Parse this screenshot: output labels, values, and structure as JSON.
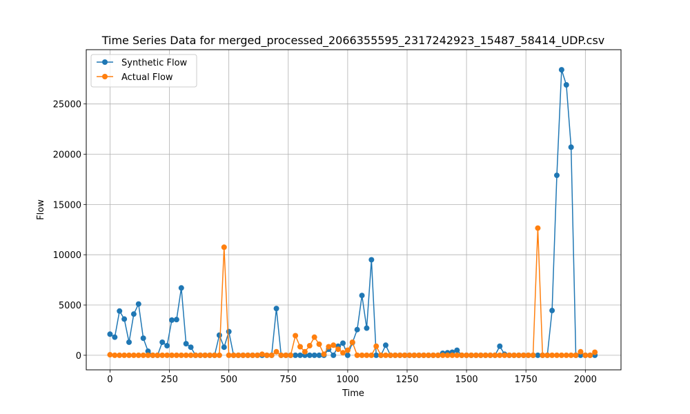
{
  "chart_data": {
    "type": "line",
    "title": "Time Series Data for merged_processed_2066355595_2317242923_15487_58414_UDP.csv",
    "xlabel": "Time",
    "ylabel": "Flow",
    "xlim": [
      -100,
      2150
    ],
    "ylim": [
      -1450,
      30400
    ],
    "xticks": [
      0,
      250,
      500,
      750,
      1000,
      1250,
      1500,
      1750,
      2000
    ],
    "yticks": [
      0,
      5000,
      10000,
      15000,
      20000,
      25000
    ],
    "grid": true,
    "legend_position": "top-left",
    "x": [
      0,
      20,
      40,
      60,
      80,
      100,
      120,
      140,
      160,
      180,
      200,
      220,
      240,
      260,
      280,
      300,
      320,
      340,
      360,
      380,
      400,
      420,
      440,
      460,
      480,
      500,
      520,
      540,
      560,
      580,
      600,
      620,
      640,
      660,
      680,
      700,
      720,
      740,
      760,
      780,
      800,
      820,
      840,
      860,
      880,
      900,
      920,
      940,
      960,
      980,
      1000,
      1020,
      1040,
      1060,
      1080,
      1100,
      1120,
      1140,
      1160,
      1180,
      1200,
      1220,
      1240,
      1260,
      1280,
      1300,
      1320,
      1340,
      1360,
      1380,
      1400,
      1420,
      1440,
      1460,
      1480,
      1500,
      1520,
      1540,
      1560,
      1580,
      1600,
      1620,
      1640,
      1660,
      1680,
      1700,
      1720,
      1740,
      1760,
      1780,
      1800,
      1820,
      1840,
      1860,
      1880,
      1900,
      1920,
      1940,
      1960,
      1980,
      2000,
      2020,
      2040
    ],
    "series": [
      {
        "name": "Synthetic Flow",
        "color": "#1f77b4",
        "values": [
          2100,
          1800,
          4400,
          3600,
          1300,
          4100,
          5100,
          1700,
          400,
          0,
          0,
          1300,
          950,
          3500,
          3550,
          6700,
          1150,
          800,
          0,
          0,
          0,
          0,
          0,
          2000,
          800,
          2350,
          0,
          0,
          0,
          0,
          0,
          0,
          0,
          0,
          0,
          4650,
          0,
          0,
          0,
          0,
          0,
          0,
          0,
          0,
          0,
          0,
          600,
          0,
          900,
          1200,
          0,
          1250,
          2550,
          5950,
          2700,
          9500,
          0,
          0,
          1000,
          0,
          0,
          0,
          0,
          0,
          0,
          0,
          0,
          0,
          0,
          0,
          200,
          250,
          300,
          500,
          0,
          0,
          0,
          0,
          0,
          0,
          0,
          0,
          900,
          100,
          0,
          0,
          0,
          0,
          0,
          0,
          0,
          0,
          0,
          4450,
          17900,
          28400,
          26900,
          20700,
          0,
          0,
          0,
          0,
          0
        ]
      },
      {
        "name": "Actual Flow",
        "color": "#ff7f0e",
        "values": [
          50,
          0,
          0,
          0,
          0,
          0,
          0,
          0,
          0,
          0,
          0,
          0,
          0,
          0,
          0,
          0,
          0,
          0,
          0,
          0,
          0,
          0,
          0,
          0,
          10750,
          0,
          0,
          0,
          0,
          0,
          0,
          0,
          100,
          0,
          0,
          350,
          0,
          0,
          0,
          1950,
          850,
          350,
          950,
          1800,
          1100,
          100,
          850,
          1000,
          600,
          250,
          500,
          1300,
          0,
          0,
          0,
          0,
          900,
          0,
          0,
          0,
          0,
          0,
          0,
          0,
          0,
          0,
          0,
          0,
          0,
          0,
          0,
          0,
          0,
          0,
          0,
          0,
          0,
          0,
          0,
          0,
          0,
          0,
          0,
          0,
          0,
          0,
          0,
          0,
          0,
          0,
          12650,
          0,
          0,
          0,
          0,
          0,
          0,
          0,
          0,
          350,
          0,
          0,
          300
        ]
      }
    ]
  }
}
